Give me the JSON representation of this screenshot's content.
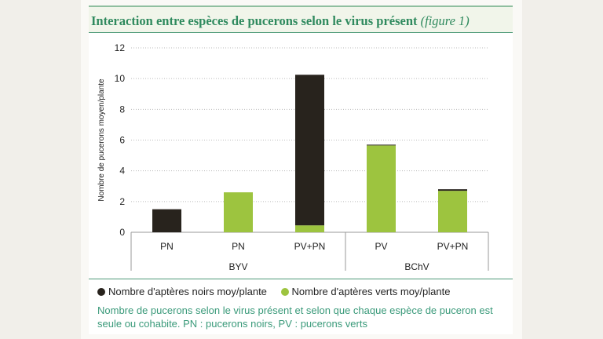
{
  "title": "Interaction entre espèces de pucerons selon le virus présent",
  "title_ref": "(figure 1)",
  "chart_data": {
    "type": "bar",
    "stacked": true,
    "ylabel": "Nombre de pucerons moyen/plante",
    "ylim": [
      0,
      12
    ],
    "yticks": [
      0,
      2,
      4,
      6,
      8,
      10,
      12
    ],
    "grid": true,
    "categories": [
      "PN",
      "PN",
      "PV+PN",
      "PV",
      "PV+PN"
    ],
    "groups": [
      {
        "label": "BYV",
        "categories": [
          0,
          1,
          2
        ]
      },
      {
        "label": "BChV",
        "categories": [
          3,
          4
        ]
      }
    ],
    "series": [
      {
        "name": "Nombre d'aptères verts moy/plante",
        "color": "#9dc43f",
        "values": [
          0,
          2.6,
          0.45,
          5.65,
          2.7
        ]
      },
      {
        "name": "Nombre d'aptères noirs moy/plante",
        "color": "#28231d",
        "values": [
          1.5,
          0,
          9.8,
          0.05,
          0.1
        ]
      }
    ],
    "legend_position": "bottom"
  },
  "legend": [
    {
      "label": "Nombre d'aptères noirs moy/plante",
      "color": "#28231d"
    },
    {
      "label": "Nombre d'aptères verts moy/plante",
      "color": "#9dc43f"
    }
  ],
  "caption": "Nombre de pucerons selon le virus présent et selon que chaque espèce de puceron est seule ou cohabite. PN : pucerons noirs, PV : pucerons verts"
}
